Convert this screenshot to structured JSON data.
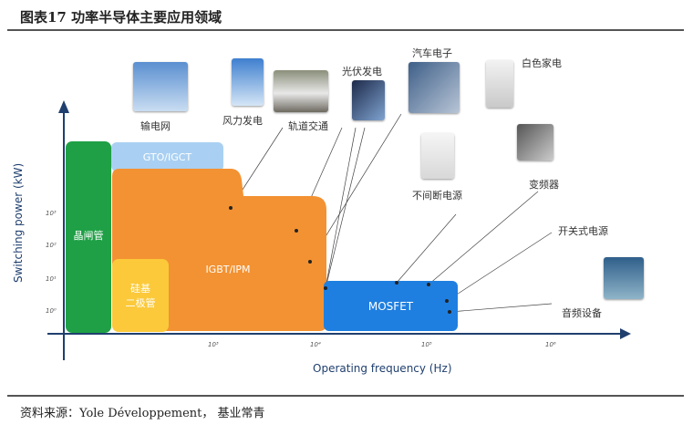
{
  "title": "图表17 功率半导体主要应用领域",
  "axes": {
    "y_label": "Switching power (kW)",
    "x_label": "Operating frequency (Hz)",
    "y_ticks": [
      "10³",
      "10²",
      "10¹",
      "10⁰"
    ],
    "x_ticks": [
      "10³",
      "10⁴",
      "10⁵",
      "10⁶"
    ]
  },
  "blocks": {
    "thyristor": "晶闸管",
    "gto": "GTO/IGCT",
    "igbt": "IGBT/IPM",
    "diode_1": "硅基",
    "diode_2": "二极管",
    "mosfet": "MOSFET"
  },
  "applications": [
    "输电网",
    "风力发电",
    "轨道交通",
    "光伏发电",
    "汽车电子",
    "白色家电",
    "不间断电源",
    "变频器",
    "开关式电源",
    "音频设备"
  ],
  "colors": {
    "thyristor": "#1fa046",
    "gto": "#a9d0f2",
    "igbt": "#f39232",
    "diode": "#fbc93a",
    "mosfet": "#1f7fe0",
    "axis": "#1f3f6e"
  },
  "source": "资料来源：Yole Développement， 基业常青"
}
